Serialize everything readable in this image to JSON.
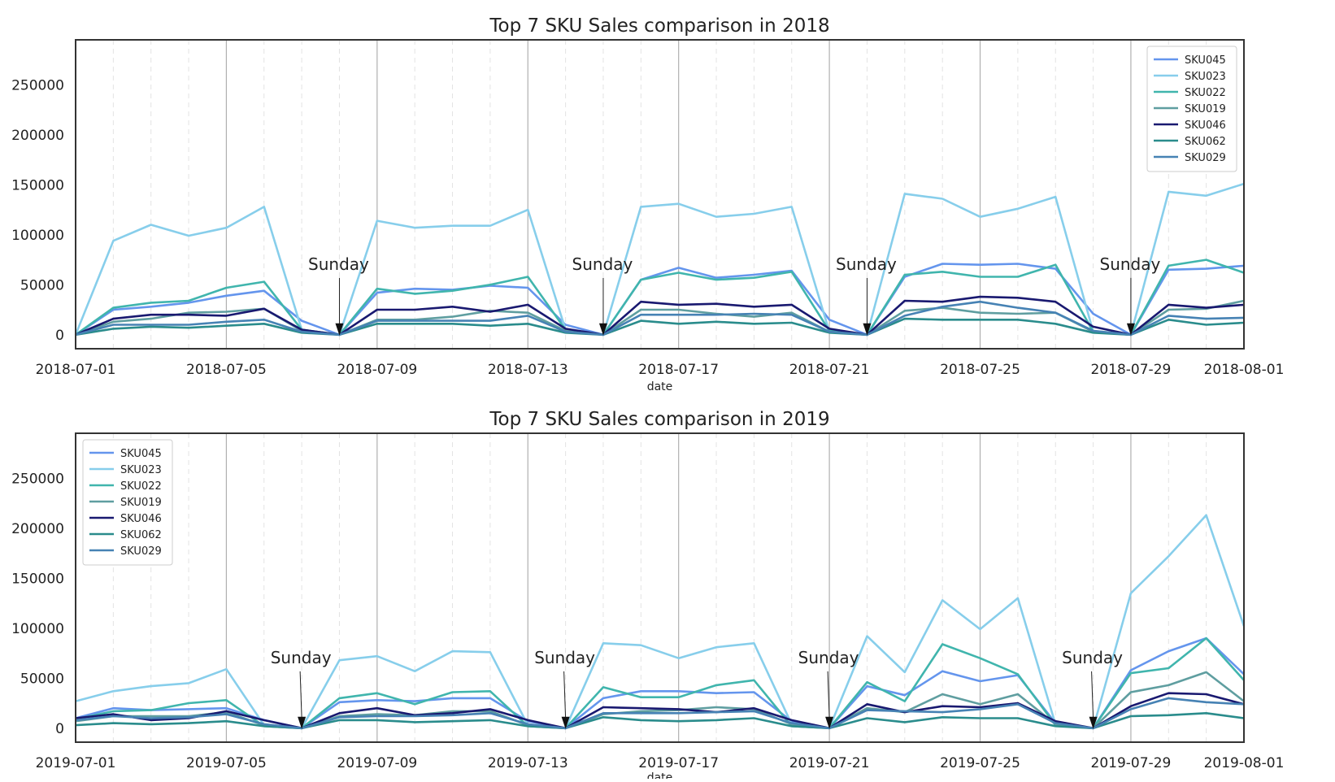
{
  "colors": {
    "SKU045": "#6495ED",
    "SKU023": "#87CEEB",
    "SKU022": "#40B5AD",
    "SKU019": "#5F9EA0",
    "SKU046": "#191970",
    "SKU062": "#2A8C8C",
    "SKU029": "#4682B4",
    "axes": "#333333",
    "grid_major": "#b0b0b0",
    "grid_minor": "#e3e3e3"
  },
  "chart_data": [
    {
      "type": "line",
      "title": "Top 7 SKU Sales comparison in 2018",
      "xlabel": "date",
      "ylabel": "",
      "ylim": [
        -14000,
        295000
      ],
      "xlim": [
        "2018-07-01",
        "2018-08-01"
      ],
      "yticks": [
        0,
        50000,
        100000,
        150000,
        200000,
        250000
      ],
      "xticks": [
        "2018-07-01",
        "2018-07-05",
        "2018-07-09",
        "2018-07-13",
        "2018-07-17",
        "2018-07-21",
        "2018-07-25",
        "2018-07-29",
        "2018-08-01"
      ],
      "grid": true,
      "legend_position": "top-right",
      "x": [
        "2018-07-01",
        "2018-07-02",
        "2018-07-03",
        "2018-07-04",
        "2018-07-05",
        "2018-07-06",
        "2018-07-07",
        "2018-07-08",
        "2018-07-09",
        "2018-07-10",
        "2018-07-11",
        "2018-07-12",
        "2018-07-13",
        "2018-07-14",
        "2018-07-15",
        "2018-07-16",
        "2018-07-17",
        "2018-07-18",
        "2018-07-19",
        "2018-07-20",
        "2018-07-21",
        "2018-07-22",
        "2018-07-23",
        "2018-07-24",
        "2018-07-25",
        "2018-07-26",
        "2018-07-27",
        "2018-07-28",
        "2018-07-29",
        "2018-07-30",
        "2018-07-31",
        "2018-08-01"
      ],
      "series": [
        {
          "name": "SKU045",
          "values": [
            0,
            25000,
            28000,
            32000,
            39000,
            44000,
            14000,
            0,
            42000,
            46000,
            45000,
            49000,
            47000,
            10000,
            0,
            55000,
            67000,
            57000,
            60000,
            64000,
            15000,
            0,
            58000,
            71000,
            70000,
            71000,
            66000,
            21000,
            0,
            65000,
            66000,
            69000
          ]
        },
        {
          "name": "SKU023",
          "values": [
            0,
            94000,
            110000,
            99000,
            107000,
            128000,
            5000,
            0,
            114000,
            107000,
            109000,
            109000,
            125000,
            5000,
            0,
            128000,
            131000,
            118000,
            121000,
            128000,
            3000,
            0,
            141000,
            136000,
            118000,
            126000,
            138000,
            3000,
            0,
            143000,
            139000,
            151000
          ]
        },
        {
          "name": "SKU022",
          "values": [
            0,
            27000,
            32000,
            34000,
            47000,
            53000,
            5000,
            0,
            46000,
            41000,
            44000,
            50000,
            58000,
            5000,
            0,
            55000,
            62000,
            55000,
            57000,
            63000,
            4000,
            0,
            60000,
            63000,
            58000,
            58000,
            70000,
            3000,
            0,
            69000,
            75000,
            62000
          ]
        },
        {
          "name": "SKU019",
          "values": [
            0,
            13000,
            16000,
            22000,
            23000,
            26000,
            4000,
            0,
            15000,
            15000,
            18000,
            24000,
            22000,
            4000,
            0,
            25000,
            25000,
            21000,
            18000,
            22000,
            3000,
            0,
            24000,
            27000,
            22000,
            21000,
            22000,
            3000,
            0,
            25000,
            26000,
            34000
          ]
        },
        {
          "name": "SKU046",
          "values": [
            0,
            16000,
            20000,
            20000,
            19000,
            26000,
            5000,
            0,
            25000,
            25000,
            28000,
            23000,
            30000,
            6000,
            0,
            33000,
            30000,
            31000,
            28000,
            30000,
            6000,
            0,
            34000,
            33000,
            38000,
            37000,
            33000,
            8000,
            0,
            30000,
            27000,
            30000
          ]
        },
        {
          "name": "SKU062",
          "values": [
            0,
            6000,
            8000,
            7000,
            9000,
            11000,
            2000,
            0,
            11000,
            11000,
            11000,
            9000,
            11000,
            2000,
            0,
            14000,
            11000,
            13000,
            11000,
            12000,
            2000,
            0,
            16000,
            15000,
            15000,
            15000,
            11000,
            2000,
            0,
            15000,
            10000,
            12000
          ]
        },
        {
          "name": "SKU029",
          "values": [
            0,
            10000,
            10000,
            10000,
            13000,
            15000,
            3000,
            0,
            14000,
            14000,
            14000,
            14000,
            19000,
            3000,
            0,
            20000,
            20000,
            20000,
            21000,
            20000,
            3000,
            0,
            19000,
            28000,
            33000,
            27000,
            22000,
            4000,
            0,
            19000,
            16000,
            17000
          ]
        }
      ],
      "annotations": [
        {
          "text": "Sunday",
          "x": "2018-07-08"
        },
        {
          "text": "Sunday",
          "x": "2018-07-15"
        },
        {
          "text": "Sunday",
          "x": "2018-07-22"
        },
        {
          "text": "Sunday",
          "x": "2018-07-29"
        }
      ]
    },
    {
      "type": "line",
      "title": "Top 7 SKU Sales comparison in 2019",
      "xlabel": "date",
      "ylabel": "",
      "ylim": [
        -14000,
        295000
      ],
      "xlim": [
        "2019-07-01",
        "2019-08-01"
      ],
      "yticks": [
        0,
        50000,
        100000,
        150000,
        200000,
        250000
      ],
      "xticks": [
        "2019-07-01",
        "2019-07-05",
        "2019-07-09",
        "2019-07-13",
        "2019-07-17",
        "2019-07-21",
        "2019-07-25",
        "2019-07-29",
        "2019-08-01"
      ],
      "grid": true,
      "legend_position": "top-left",
      "x": [
        "2019-07-01",
        "2019-07-02",
        "2019-07-03",
        "2019-07-04",
        "2019-07-05",
        "2019-07-06",
        "2019-07-07",
        "2019-07-08",
        "2019-07-09",
        "2019-07-10",
        "2019-07-11",
        "2019-07-12",
        "2019-07-13",
        "2019-07-14",
        "2019-07-15",
        "2019-07-16",
        "2019-07-17",
        "2019-07-18",
        "2019-07-19",
        "2019-07-20",
        "2019-07-21",
        "2019-07-22",
        "2019-07-23",
        "2019-07-24",
        "2019-07-25",
        "2019-07-26",
        "2019-07-27",
        "2019-07-28",
        "2019-07-29",
        "2019-07-30",
        "2019-07-31",
        "2019-08-01"
      ],
      "series": [
        {
          "name": "SKU045",
          "values": [
            10000,
            20000,
            18000,
            19000,
            20000,
            8000,
            0,
            26000,
            28000,
            27000,
            30000,
            30000,
            7000,
            0,
            30000,
            37000,
            37000,
            35000,
            36000,
            7000,
            0,
            42000,
            33000,
            57000,
            47000,
            53000,
            5000,
            0,
            58000,
            77000,
            90000,
            54000
          ]
        },
        {
          "name": "SKU023",
          "values": [
            27000,
            37000,
            42000,
            45000,
            59000,
            3000,
            0,
            68000,
            72000,
            57000,
            77000,
            76000,
            3000,
            0,
            85000,
            83000,
            70000,
            81000,
            85000,
            4000,
            0,
            92000,
            56000,
            128000,
            99000,
            130000,
            4000,
            0,
            135000,
            172000,
            213000,
            102000
          ]
        },
        {
          "name": "SKU022",
          "values": [
            9000,
            17000,
            18000,
            25000,
            28000,
            2000,
            0,
            30000,
            35000,
            24000,
            36000,
            37000,
            2000,
            0,
            41000,
            31000,
            31000,
            43000,
            48000,
            2000,
            0,
            46000,
            27000,
            84000,
            70000,
            54000,
            3000,
            0,
            55000,
            60000,
            90000,
            48000
          ]
        },
        {
          "name": "SKU019",
          "values": [
            7000,
            12000,
            12000,
            12000,
            16000,
            3000,
            0,
            12000,
            14000,
            13000,
            17000,
            17000,
            3000,
            0,
            14000,
            17000,
            18000,
            21000,
            19000,
            4000,
            0,
            20000,
            16000,
            34000,
            24000,
            34000,
            4000,
            0,
            36000,
            43000,
            56000,
            27000
          ]
        },
        {
          "name": "SKU046",
          "values": [
            10000,
            14000,
            8000,
            10000,
            17000,
            8000,
            0,
            15000,
            20000,
            13000,
            15000,
            19000,
            8000,
            0,
            21000,
            20000,
            19000,
            16000,
            20000,
            8000,
            0,
            24000,
            16000,
            22000,
            21000,
            25000,
            7000,
            0,
            22000,
            35000,
            34000,
            24000
          ]
        },
        {
          "name": "SKU062",
          "values": [
            3000,
            5000,
            4000,
            5000,
            7000,
            2000,
            0,
            8000,
            8000,
            6000,
            7000,
            8000,
            2000,
            0,
            11000,
            8000,
            7000,
            8000,
            10000,
            2000,
            0,
            10000,
            6000,
            11000,
            10000,
            10000,
            2000,
            0,
            12000,
            13000,
            15000,
            10000
          ]
        },
        {
          "name": "SKU029",
          "values": [
            8000,
            12000,
            10000,
            11000,
            14000,
            4000,
            0,
            11000,
            12000,
            12000,
            13000,
            15000,
            4000,
            0,
            15000,
            15000,
            15000,
            16000,
            17000,
            5000,
            0,
            18000,
            17000,
            16000,
            19000,
            24000,
            5000,
            0,
            19000,
            30000,
            26000,
            24000
          ]
        }
      ],
      "annotations": [
        {
          "text": "Sunday",
          "x": "2019-07-07"
        },
        {
          "text": "Sunday",
          "x": "2019-07-14"
        },
        {
          "text": "Sunday",
          "x": "2019-07-21"
        },
        {
          "text": "Sunday",
          "x": "2019-07-28"
        }
      ]
    }
  ]
}
